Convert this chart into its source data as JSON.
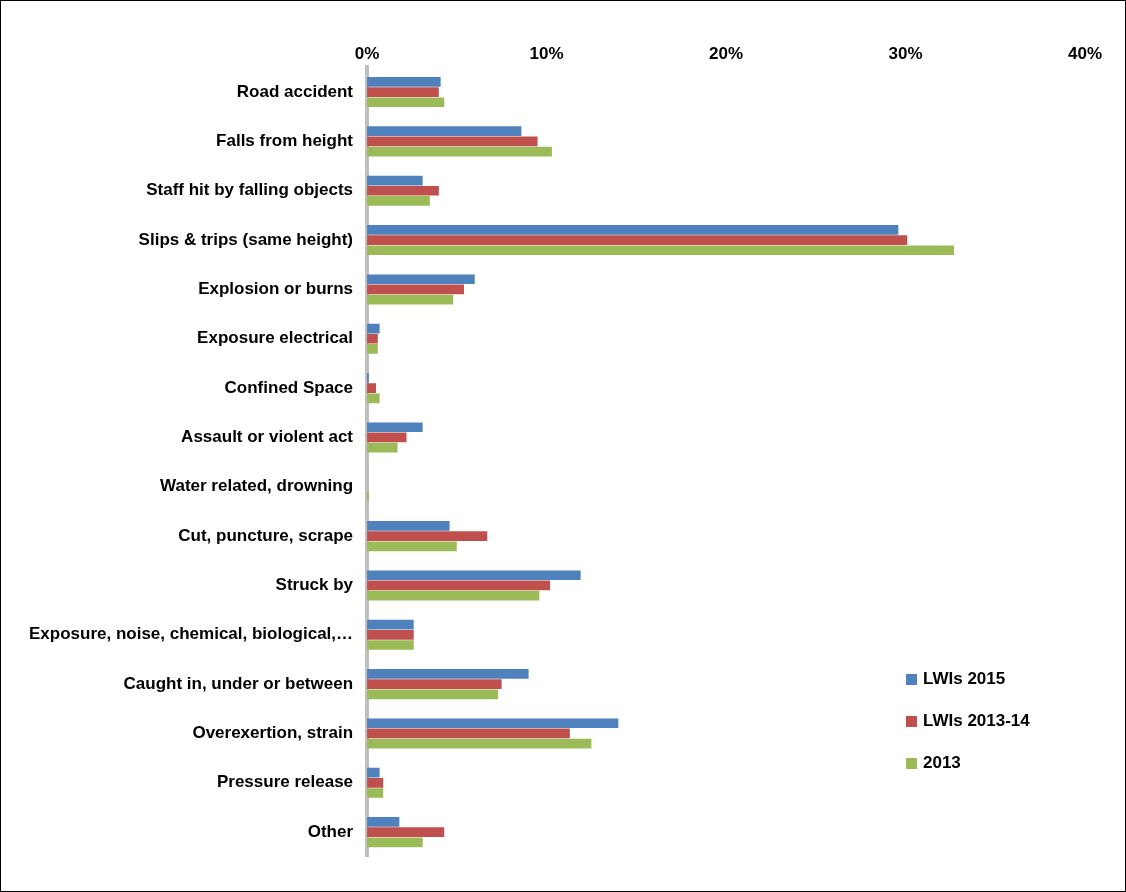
{
  "chart_data": {
    "type": "bar",
    "orientation": "horizontal",
    "categories": [
      "Road accident",
      "Falls from height",
      "Staff hit by falling objects",
      "Slips & trips (same height)",
      "Explosion or burns",
      "Exposure electrical",
      "Confined Space",
      "Assault or violent act",
      "Water related, drowning",
      "Cut, puncture, scrape",
      "Struck by",
      "Exposure, noise, chemical, biological,…",
      "Caught in, under or between",
      "Overexertion, strain",
      "Pressure release",
      "Other"
    ],
    "series": [
      {
        "name": "LWIs 2015",
        "color": "#4f81bd",
        "values": [
          4.1,
          8.6,
          3.1,
          29.6,
          6.0,
          0.7,
          0.1,
          3.1,
          0,
          4.6,
          11.9,
          2.6,
          9.0,
          14.0,
          0.7,
          1.8
        ]
      },
      {
        "name": "LWIs 2013-14",
        "color": "#c0504d",
        "values": [
          4.0,
          9.5,
          4.0,
          30.1,
          5.4,
          0.6,
          0.5,
          2.2,
          0,
          6.7,
          10.2,
          2.6,
          7.5,
          11.3,
          0.9,
          4.3
        ]
      },
      {
        "name": "2013",
        "color": "#9bbb59",
        "values": [
          4.3,
          10.3,
          3.5,
          32.7,
          4.8,
          0.6,
          0.7,
          1.7,
          0.1,
          5.0,
          9.6,
          2.6,
          7.3,
          12.5,
          0.9,
          3.1
        ]
      }
    ],
    "xlim": [
      0,
      40
    ],
    "xticks": [
      {
        "value": 0,
        "label": "0%"
      },
      {
        "value": 10,
        "label": "10%"
      },
      {
        "value": 20,
        "label": "20%"
      },
      {
        "value": 30,
        "label": "30%"
      },
      {
        "value": 40,
        "label": "40%"
      }
    ],
    "grid": false,
    "legend": "bottom right"
  }
}
